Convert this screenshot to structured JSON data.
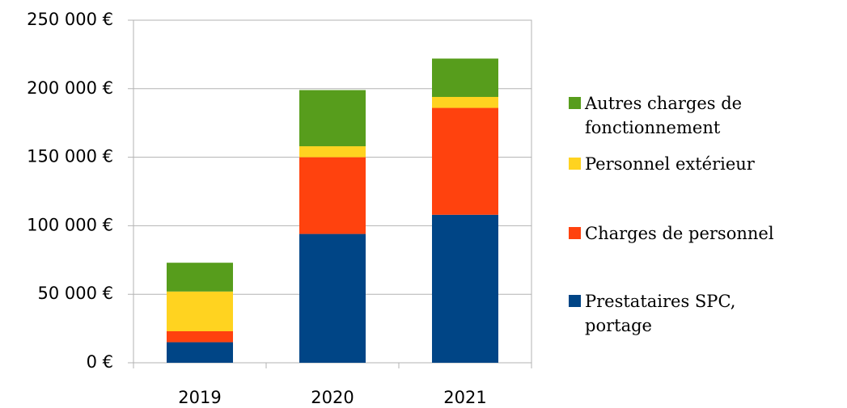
{
  "chart_data": {
    "type": "bar",
    "stacked": true,
    "categories": [
      "2019",
      "2020",
      "2021"
    ],
    "series": [
      {
        "name": "Prestataires SPC, portage",
        "color": "#004586",
        "values": [
          15000,
          94000,
          108000
        ]
      },
      {
        "name": "Charges de personnel",
        "color": "#ff420e",
        "values": [
          8000,
          56000,
          78000
        ]
      },
      {
        "name": "Personnel extérieur",
        "color": "#ffd320",
        "values": [
          29000,
          8000,
          8000
        ]
      },
      {
        "name": "Autres charges de fonctionnement",
        "color": "#579d1c",
        "values": [
          21000,
          41000,
          28000
        ]
      }
    ],
    "ylim": [
      0,
      250000
    ],
    "yticks": [
      {
        "value": 0,
        "label": "0 €"
      },
      {
        "value": 50000,
        "label": "50 000 €"
      },
      {
        "value": 100000,
        "label": "100 000 €"
      },
      {
        "value": 150000,
        "label": "150 000 €"
      },
      {
        "value": 200000,
        "label": "200 000 €"
      },
      {
        "value": 250000,
        "label": "250 000 €"
      }
    ],
    "grid": true,
    "legend": "right"
  }
}
